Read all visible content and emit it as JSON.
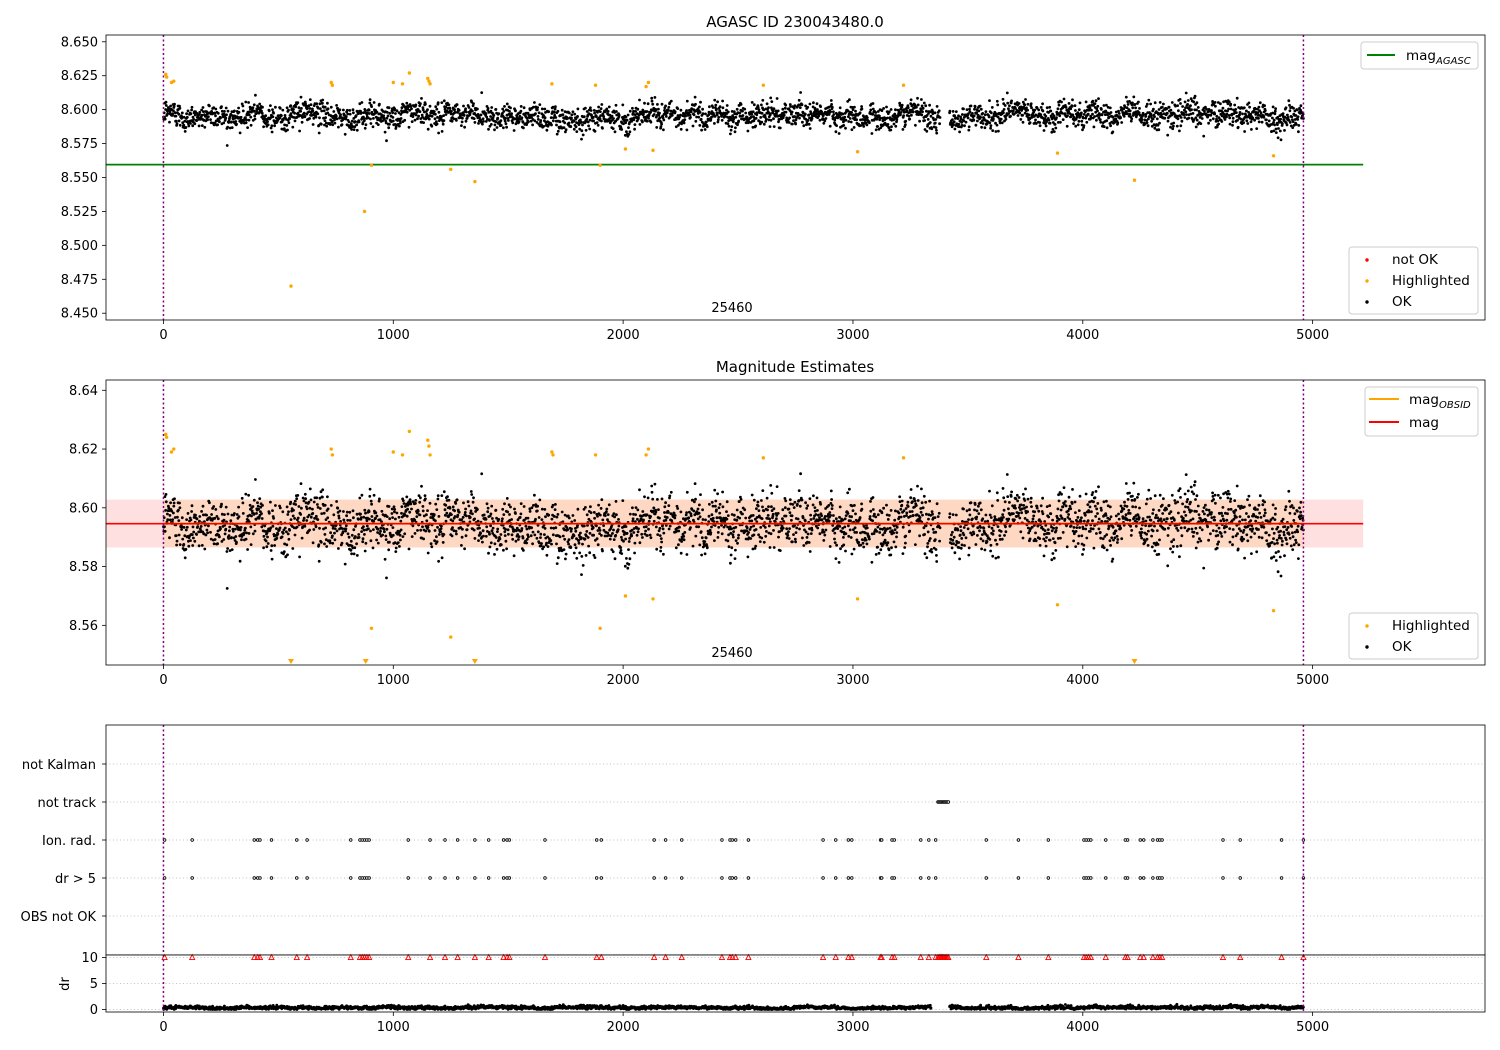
{
  "chart_data": [
    {
      "type": "scatter",
      "title": "AGASC ID 230043480.0",
      "xlim": [
        -250,
        5750
      ],
      "ylim": [
        8.445,
        8.655
      ],
      "xticks": [
        0,
        1000,
        2000,
        3000,
        4000,
        5000
      ],
      "yticks": [
        8.45,
        8.475,
        8.5,
        8.525,
        8.55,
        8.575,
        8.6,
        8.625,
        8.65
      ],
      "obsid_label": "25460",
      "obsid_label_x": 2480,
      "obsid_boundaries": [
        0,
        4960
      ],
      "series": [
        {
          "name": "not OK",
          "color": "#ff0000",
          "points": []
        },
        {
          "name": "Highlighted",
          "color": "#ffa500",
          "points": [
            [
              10,
              8.626
            ],
            [
              14,
              8.624
            ],
            [
              35,
              8.62
            ],
            [
              45,
              8.621
            ],
            [
              555,
              8.47
            ],
            [
              730,
              8.62
            ],
            [
              735,
              8.618
            ],
            [
              875,
              8.525
            ],
            [
              905,
              8.559
            ],
            [
              1000,
              8.62
            ],
            [
              1040,
              8.619
            ],
            [
              1070,
              8.627
            ],
            [
              1150,
              8.623
            ],
            [
              1155,
              8.621
            ],
            [
              1160,
              8.619
            ],
            [
              1250,
              8.556
            ],
            [
              1355,
              8.547
            ],
            [
              1690,
              8.619
            ],
            [
              1880,
              8.618
            ],
            [
              1900,
              8.559
            ],
            [
              2010,
              8.571
            ],
            [
              2100,
              8.617
            ],
            [
              2110,
              8.62
            ],
            [
              2130,
              8.57
            ],
            [
              2610,
              8.618
            ],
            [
              3020,
              8.569
            ],
            [
              3220,
              8.618
            ],
            [
              3890,
              8.568
            ],
            [
              4225,
              8.548
            ],
            [
              4830,
              8.566
            ]
          ]
        },
        {
          "name": "OK",
          "color": "#000000",
          "band": {
            "x_start": 0,
            "x_end": 4960,
            "center": 8.596,
            "spread": 0.008,
            "count": 3200,
            "gap": [
              3380,
              3420
            ]
          }
        }
      ],
      "lines": [
        {
          "name": "mag_AGASC",
          "legend_main": "mag",
          "legend_sub": "AGASC",
          "color": "#008000",
          "y": 8.5595,
          "x_start": -250,
          "x_end": 5220
        }
      ],
      "legends": [
        {
          "position": "top-right",
          "entries": [
            "mag_AGASC"
          ]
        },
        {
          "position": "bottom-right",
          "entries": [
            "not OK",
            "Highlighted",
            "OK"
          ]
        }
      ]
    },
    {
      "type": "scatter",
      "title": "Magnitude Estimates",
      "xlim": [
        -250,
        5750
      ],
      "ylim": [
        8.5465,
        8.6435
      ],
      "xticks": [
        0,
        1000,
        2000,
        3000,
        4000,
        5000
      ],
      "yticks": [
        8.56,
        8.58,
        8.6,
        8.62,
        8.64
      ],
      "obsid_label": "25460",
      "obsid_label_x": 2480,
      "obsid_boundaries": [
        0,
        4960
      ],
      "series": [
        {
          "name": "Highlighted",
          "color": "#ffa500",
          "points": [
            [
              10,
              8.625
            ],
            [
              14,
              8.624
            ],
            [
              35,
              8.619
            ],
            [
              45,
              8.62
            ],
            [
              730,
              8.62
            ],
            [
              735,
              8.618
            ],
            [
              905,
              8.559
            ],
            [
              1000,
              8.619
            ],
            [
              1040,
              8.618
            ],
            [
              1070,
              8.626
            ],
            [
              1150,
              8.623
            ],
            [
              1155,
              8.621
            ],
            [
              1160,
              8.618
            ],
            [
              1250,
              8.556
            ],
            [
              1690,
              8.619
            ],
            [
              1695,
              8.618
            ],
            [
              1880,
              8.618
            ],
            [
              1900,
              8.559
            ],
            [
              2010,
              8.57
            ],
            [
              2100,
              8.618
            ],
            [
              2110,
              8.62
            ],
            [
              2130,
              8.569
            ],
            [
              2610,
              8.617
            ],
            [
              3020,
              8.569
            ],
            [
              3220,
              8.617
            ],
            [
              3890,
              8.567
            ],
            [
              4830,
              8.565
            ]
          ]
        },
        {
          "name": "OK",
          "color": "#000000",
          "band": {
            "x_start": 0,
            "x_end": 4960,
            "center": 8.595,
            "spread": 0.008,
            "count": 3200,
            "gap": [
              3380,
              3420
            ]
          }
        }
      ],
      "out_of_range_markers": [
        555,
        880,
        1355,
        4225
      ],
      "lines": [
        {
          "name": "mag_OBSID",
          "legend_main": "mag",
          "legend_sub": "OBSID",
          "color": "#ffa500",
          "y": 8.5946,
          "x_start": 0,
          "x_end": 4960,
          "band": [
            8.5865,
            8.6028
          ]
        },
        {
          "name": "mag",
          "legend_main": "mag",
          "legend_sub": "",
          "color": "#ff0000",
          "y": 8.5946,
          "x_start": -250,
          "x_end": 5220,
          "band": [
            8.5865,
            8.6028
          ]
        }
      ],
      "legends": [
        {
          "position": "top-right",
          "entries": [
            "mag_OBSID",
            "mag"
          ]
        },
        {
          "position": "bottom-right",
          "entries": [
            "Highlighted",
            "OK"
          ]
        }
      ]
    },
    {
      "type": "scatter",
      "title": "",
      "xlim": [
        -250,
        5750
      ],
      "categories": [
        "not Kalman",
        "not track",
        "Ion. rad.",
        "dr > 5",
        "OBS not OK"
      ],
      "obsid_boundaries": [
        0,
        4960
      ],
      "flags": {
        "not track": [
          3370,
          3375,
          3380,
          3385,
          3390,
          3395,
          3400,
          3405,
          3410,
          3415
        ],
        "Ion. rad.": [
          5,
          125,
          395,
          410,
          420,
          470,
          580,
          625,
          815,
          855,
          865,
          875,
          885,
          895,
          1065,
          1160,
          1225,
          1280,
          1355,
          1415,
          1480,
          1495,
          1505,
          1660,
          1885,
          1905,
          2135,
          2185,
          2255,
          2430,
          2465,
          2475,
          2490,
          2545,
          2870,
          2925,
          2980,
          2995,
          3120,
          3125,
          3170,
          3180,
          3295,
          3330,
          3360,
          3580,
          3720,
          3850,
          4005,
          4015,
          4025,
          4035,
          4100,
          4185,
          4195,
          4250,
          4265,
          4305,
          4325,
          4335,
          4345,
          4610,
          4685,
          4865,
          4960
        ],
        "dr > 5": [
          5,
          125,
          395,
          410,
          420,
          470,
          580,
          625,
          815,
          855,
          865,
          875,
          885,
          895,
          1065,
          1160,
          1225,
          1280,
          1355,
          1415,
          1480,
          1495,
          1505,
          1660,
          1885,
          1905,
          2135,
          2185,
          2255,
          2430,
          2465,
          2475,
          2490,
          2545,
          2870,
          2925,
          2980,
          2995,
          3120,
          3125,
          3170,
          3180,
          3295,
          3330,
          3360,
          3580,
          3720,
          3850,
          4005,
          4015,
          4025,
          4035,
          4100,
          4185,
          4195,
          4250,
          4265,
          4305,
          4325,
          4335,
          4345,
          4610,
          4685,
          4865,
          4960
        ],
        "OBS not OK": [],
        "not Kalman": []
      }
    },
    {
      "type": "scatter",
      "title": "",
      "xlabel": "",
      "ylabel": "dr",
      "xlim": [
        -250,
        5750
      ],
      "ylim": [
        -0.5,
        10.5
      ],
      "xticks": [
        0,
        1000,
        2000,
        3000,
        4000,
        5000
      ],
      "yticks": [
        0,
        5,
        10
      ],
      "obsid_boundaries": [
        0,
        4960
      ],
      "series": [
        {
          "name": "dr",
          "color": "#000000",
          "band": {
            "x_start": 0,
            "x_end": 4960,
            "center": 0.35,
            "spread": 0.3,
            "count": 3200,
            "gap": [
              3340,
              3420
            ]
          }
        },
        {
          "name": "dr > 5 (clipped)",
          "color": "#ff0000",
          "marker": "triangle",
          "y": 10,
          "x_from_flags": "dr > 5",
          "extra_x": [
            3370,
            3375,
            3380,
            3385,
            3390,
            3395,
            3400,
            3405,
            3410,
            3415
          ]
        }
      ]
    }
  ]
}
